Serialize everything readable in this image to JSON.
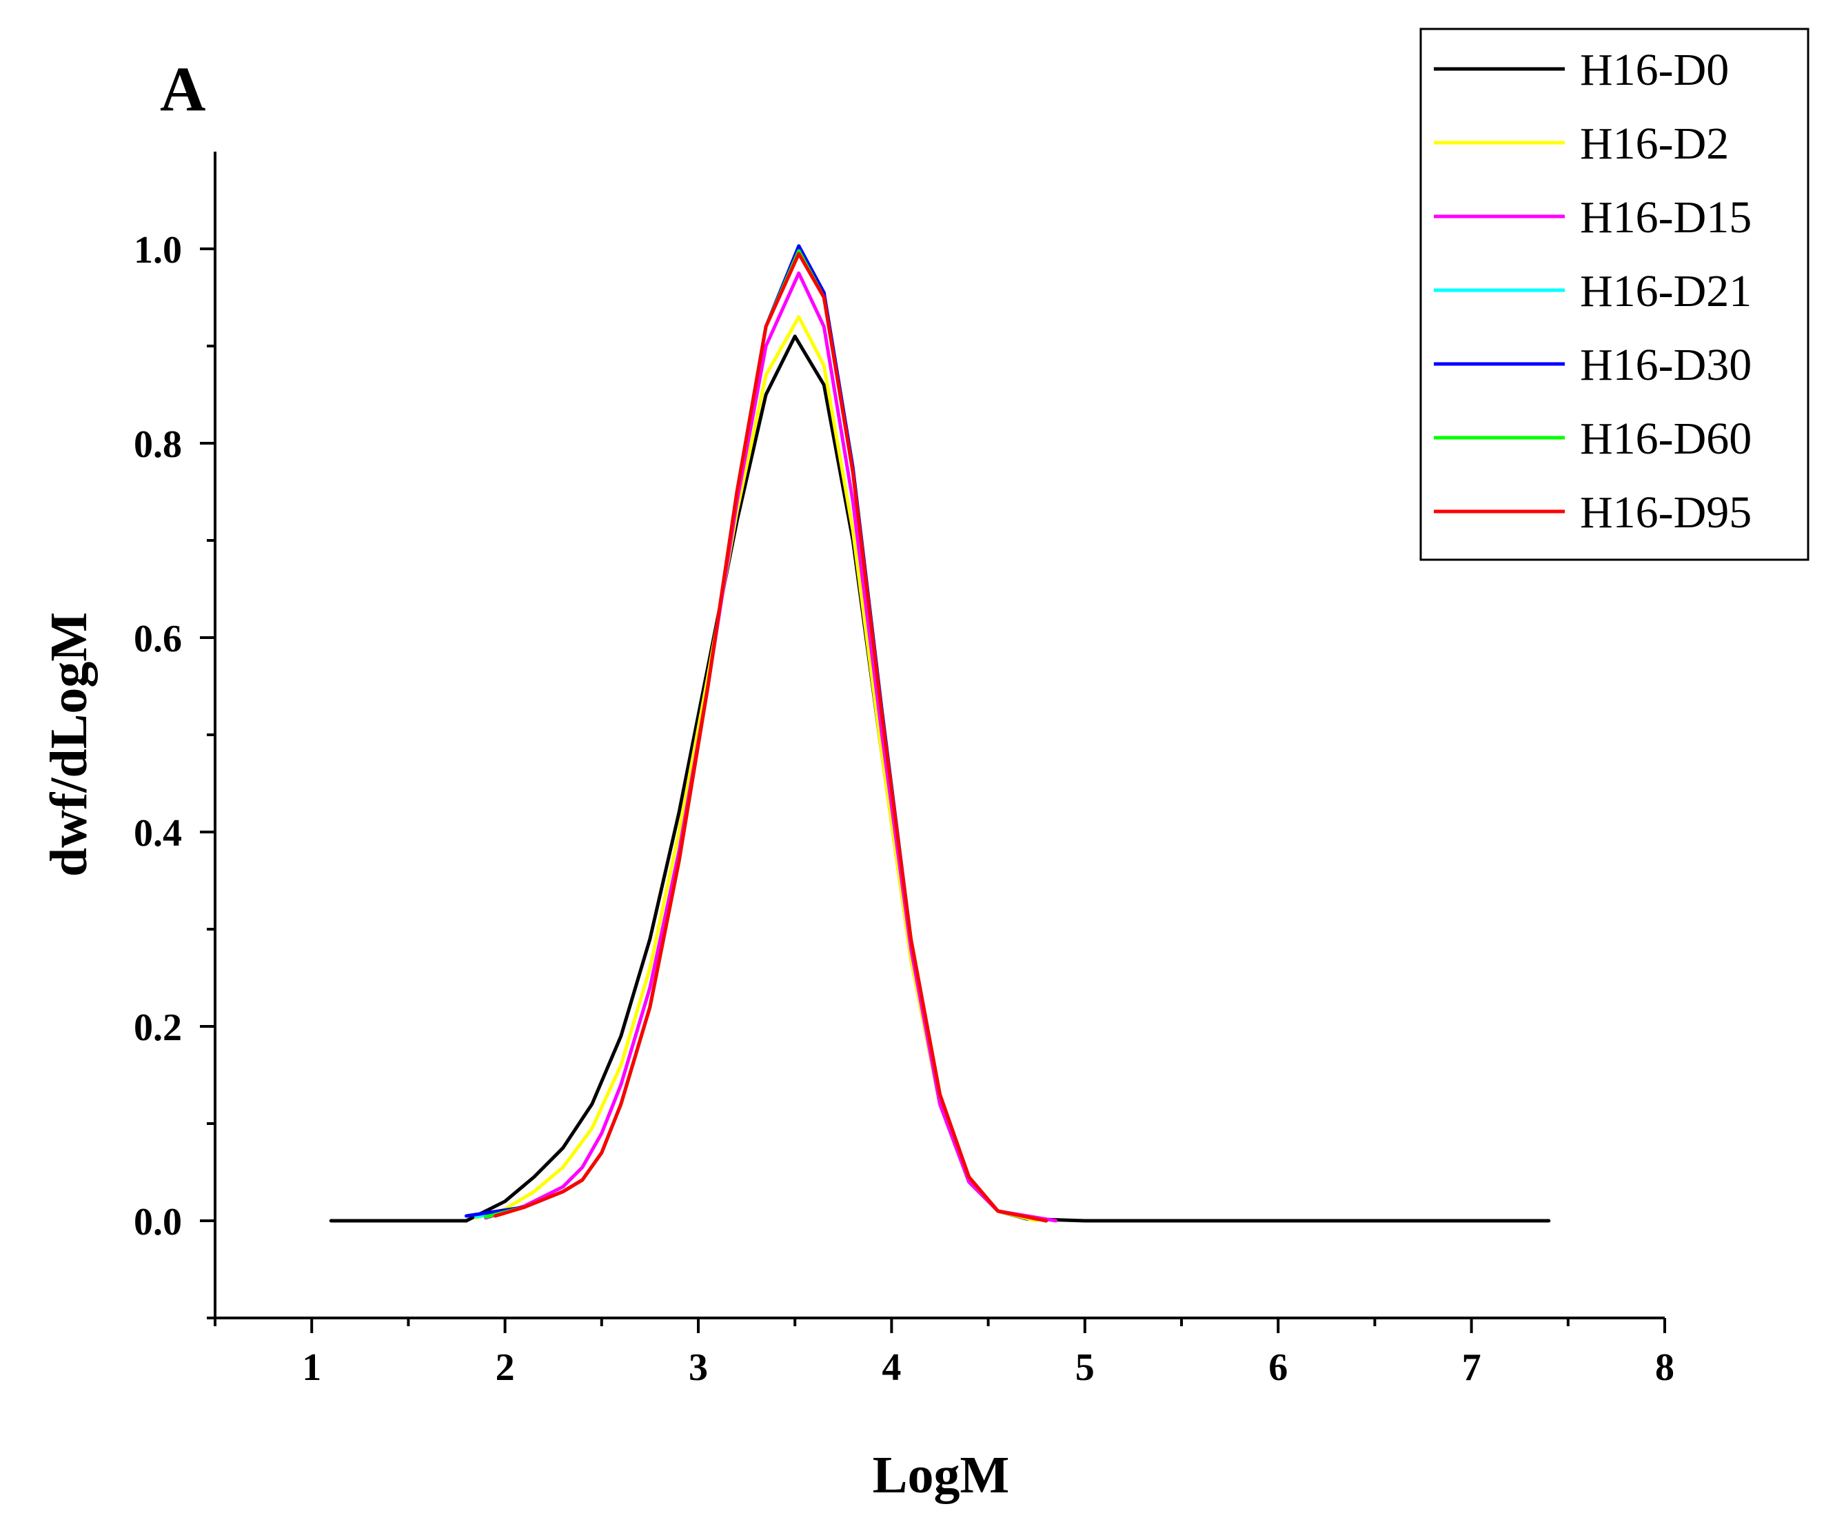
{
  "panel_label": "A",
  "chart_data": {
    "type": "line",
    "title": "",
    "xlabel": "LogM",
    "ylabel": "dwf/dLogM",
    "xlim": [
      0.5,
      8
    ],
    "ylim": [
      -0.1,
      1.1
    ],
    "xticks": [
      1,
      2,
      3,
      4,
      5,
      6,
      7,
      8
    ],
    "xtick_labels": [
      "1",
      "2",
      "3",
      "4",
      "5",
      "6",
      "7",
      "8"
    ],
    "yticks": [
      0.0,
      0.2,
      0.4,
      0.6,
      0.8,
      1.0
    ],
    "ytick_labels": [
      "0.0",
      "0.2",
      "0.4",
      "0.6",
      "0.8",
      "1.0"
    ],
    "grid": false,
    "legend_position": "top-right",
    "series": [
      {
        "name": "H16-D0",
        "color": "#000000",
        "x": [
          1.1,
          1.8,
          2.0,
          2.15,
          2.3,
          2.45,
          2.6,
          2.75,
          2.9,
          3.05,
          3.2,
          3.35,
          3.5,
          3.65,
          3.8,
          3.95,
          4.1,
          4.25,
          4.4,
          4.55,
          4.7,
          5.0,
          6.0,
          7.4
        ],
        "y": [
          0.0,
          0.0,
          0.02,
          0.045,
          0.075,
          0.12,
          0.19,
          0.29,
          0.42,
          0.57,
          0.72,
          0.85,
          0.91,
          0.86,
          0.7,
          0.48,
          0.27,
          0.12,
          0.04,
          0.01,
          0.002,
          0.0,
          0.0,
          0.0
        ]
      },
      {
        "name": "H16-D2",
        "color": "#ffff00",
        "x": [
          1.85,
          2.0,
          2.15,
          2.3,
          2.45,
          2.6,
          2.75,
          2.9,
          3.05,
          3.2,
          3.35,
          3.52,
          3.65,
          3.8,
          3.95,
          4.1,
          4.25,
          4.4,
          4.55,
          4.75
        ],
        "y": [
          0.003,
          0.012,
          0.03,
          0.055,
          0.095,
          0.16,
          0.26,
          0.4,
          0.56,
          0.73,
          0.87,
          0.93,
          0.88,
          0.71,
          0.48,
          0.27,
          0.12,
          0.04,
          0.01,
          0.0
        ]
      },
      {
        "name": "H16-D15",
        "color": "#ff00ff",
        "x": [
          1.9,
          2.1,
          2.3,
          2.4,
          2.5,
          2.6,
          2.75,
          2.9,
          3.05,
          3.2,
          3.35,
          3.52,
          3.65,
          3.8,
          3.95,
          4.1,
          4.25,
          4.4,
          4.55,
          4.85
        ],
        "y": [
          0.003,
          0.015,
          0.035,
          0.055,
          0.09,
          0.14,
          0.24,
          0.38,
          0.55,
          0.74,
          0.9,
          0.975,
          0.92,
          0.74,
          0.5,
          0.28,
          0.12,
          0.04,
          0.01,
          0.0
        ]
      },
      {
        "name": "H16-D21",
        "color": "#00ffff",
        "x": [
          1.85,
          2.1,
          2.3,
          2.4,
          2.5,
          2.6,
          2.75,
          2.9,
          3.05,
          3.2,
          3.35,
          3.52,
          3.65,
          3.8,
          3.95,
          4.1,
          4.25,
          4.4,
          4.55,
          4.8
        ],
        "y": [
          0.004,
          0.014,
          0.03,
          0.042,
          0.07,
          0.12,
          0.22,
          0.37,
          0.55,
          0.75,
          0.92,
          1.0,
          0.95,
          0.77,
          0.52,
          0.29,
          0.13,
          0.045,
          0.01,
          0.0
        ]
      },
      {
        "name": "H16-D30",
        "color": "#0000ff",
        "x": [
          1.8,
          2.1,
          2.3,
          2.4,
          2.5,
          2.6,
          2.75,
          2.9,
          3.05,
          3.2,
          3.35,
          3.52,
          3.65,
          3.8,
          3.95,
          4.1,
          4.25,
          4.4,
          4.55,
          4.8
        ],
        "y": [
          0.005,
          0.014,
          0.03,
          0.042,
          0.07,
          0.12,
          0.22,
          0.37,
          0.55,
          0.75,
          0.92,
          1.003,
          0.955,
          0.775,
          0.525,
          0.29,
          0.13,
          0.045,
          0.01,
          0.0
        ]
      },
      {
        "name": "H16-D60",
        "color": "#00ff00",
        "x": [
          1.9,
          2.1,
          2.3,
          2.4,
          2.5,
          2.6,
          2.75,
          2.9,
          3.05,
          3.2,
          3.35,
          3.52,
          3.65,
          3.8,
          3.95,
          4.1,
          4.25,
          4.4,
          4.55,
          4.8
        ],
        "y": [
          0.004,
          0.014,
          0.03,
          0.042,
          0.07,
          0.12,
          0.22,
          0.37,
          0.55,
          0.75,
          0.92,
          0.998,
          0.95,
          0.77,
          0.52,
          0.29,
          0.13,
          0.045,
          0.01,
          0.0
        ]
      },
      {
        "name": "H16-D95",
        "color": "#ff0000",
        "x": [
          1.95,
          2.1,
          2.3,
          2.4,
          2.5,
          2.6,
          2.75,
          2.9,
          3.05,
          3.2,
          3.35,
          3.52,
          3.65,
          3.8,
          3.95,
          4.1,
          4.25,
          4.4,
          4.55,
          4.8
        ],
        "y": [
          0.005,
          0.014,
          0.03,
          0.042,
          0.07,
          0.12,
          0.22,
          0.37,
          0.55,
          0.75,
          0.92,
          0.995,
          0.95,
          0.77,
          0.52,
          0.29,
          0.13,
          0.045,
          0.01,
          0.0
        ]
      }
    ]
  }
}
